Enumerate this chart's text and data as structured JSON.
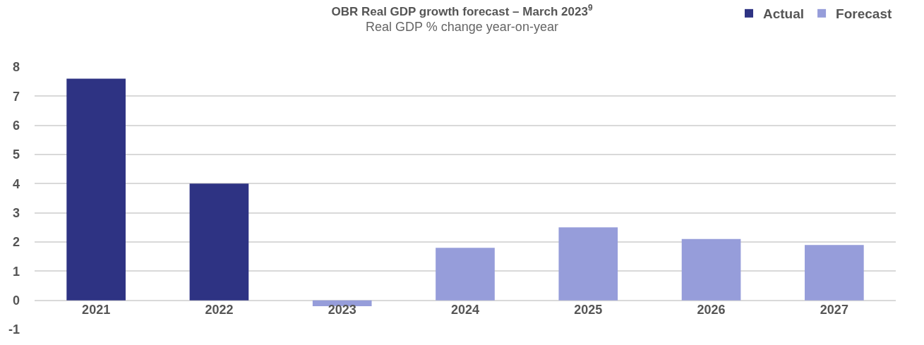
{
  "chart_data": {
    "type": "bar",
    "title": "OBR Real GDP growth forecast – March 2023$^{9}$",
    "subtitle": "Real GDP % change year-on-year",
    "categories": [
      "2021",
      "2022",
      "2023",
      "2024",
      "2025",
      "2026",
      "2027"
    ],
    "series": [
      {
        "name": "Actual",
        "color": "#2e3383",
        "values": [
          7.6,
          4.0,
          null,
          null,
          null,
          null,
          null
        ]
      },
      {
        "name": "Forecast",
        "color": "#969dda",
        "values": [
          null,
          null,
          -0.2,
          1.8,
          2.5,
          2.1,
          1.9
        ]
      }
    ],
    "stacked": true,
    "ylim": [
      -1,
      8
    ],
    "yticks": [
      -1,
      0,
      1,
      2,
      3,
      4,
      5,
      6,
      7,
      8
    ],
    "grid": "y",
    "legend": "top right"
  }
}
